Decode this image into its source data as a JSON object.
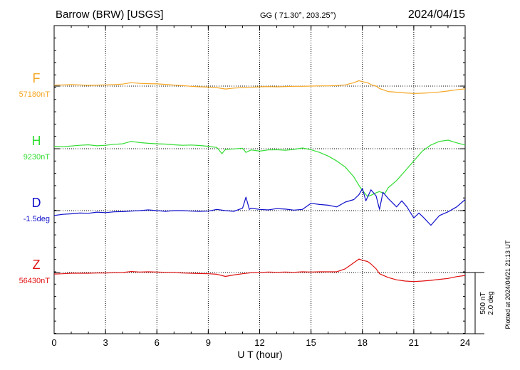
{
  "header": {
    "station": "Barrow (BRW)  [USGS]",
    "coords": "GG ( 71.30°, 203.25°)",
    "date": "2024/04/15"
  },
  "side_note": "Plotted at 2024/04/21 21:13 UT",
  "scale_bar": {
    "label1": "500 nT",
    "label2": "2.0 deg"
  },
  "chart_data": {
    "type": "line",
    "xlabel": "U T (hour)",
    "xlim": [
      0,
      24
    ],
    "xticks": [
      "0",
      "3",
      "6",
      "9",
      "12",
      "15",
      "18",
      "21",
      "24"
    ],
    "scale_bar_nT": 500,
    "grid": true,
    "series": [
      {
        "name": "F",
        "baseline_label": "57180nT",
        "color": "#f5a623",
        "points": [
          [
            0,
            -8
          ],
          [
            0.5,
            -10
          ],
          [
            1,
            -12
          ],
          [
            1.5,
            -10
          ],
          [
            2,
            -6
          ],
          [
            2.5,
            -8
          ],
          [
            3,
            -10
          ],
          [
            3.5,
            -12
          ],
          [
            4,
            -16
          ],
          [
            4.5,
            -28
          ],
          [
            5,
            -22
          ],
          [
            5.5,
            -20
          ],
          [
            6,
            -18
          ],
          [
            6.5,
            -14
          ],
          [
            7,
            -8
          ],
          [
            7.5,
            -4
          ],
          [
            8,
            2
          ],
          [
            8.5,
            6
          ],
          [
            9,
            8
          ],
          [
            9.5,
            12
          ],
          [
            10,
            24
          ],
          [
            10.5,
            16
          ],
          [
            11,
            12
          ],
          [
            11.5,
            10
          ],
          [
            12,
            6
          ],
          [
            12.5,
            4
          ],
          [
            13,
            6
          ],
          [
            13.5,
            4
          ],
          [
            14,
            2
          ],
          [
            14.5,
            2
          ],
          [
            15,
            0
          ],
          [
            15.5,
            -2
          ],
          [
            16,
            -2
          ],
          [
            16.5,
            -4
          ],
          [
            17,
            -10
          ],
          [
            17.5,
            -28
          ],
          [
            17.8,
            -44
          ],
          [
            18,
            -36
          ],
          [
            18.3,
            -28
          ],
          [
            18.5,
            -12
          ],
          [
            18.8,
            0
          ],
          [
            19,
            20
          ],
          [
            19.5,
            44
          ],
          [
            20,
            50
          ],
          [
            20.5,
            56
          ],
          [
            21,
            60
          ],
          [
            21.5,
            58
          ],
          [
            22,
            54
          ],
          [
            22.5,
            48
          ],
          [
            23,
            40
          ],
          [
            23.5,
            30
          ],
          [
            24,
            22
          ]
        ]
      },
      {
        "name": "H",
        "baseline_label": "9230nT",
        "color": "#33dd33",
        "points": [
          [
            0,
            -20
          ],
          [
            0.5,
            -16
          ],
          [
            1,
            -22
          ],
          [
            1.5,
            -28
          ],
          [
            2,
            -32
          ],
          [
            2.5,
            -24
          ],
          [
            3,
            -28
          ],
          [
            3.5,
            -36
          ],
          [
            4,
            -40
          ],
          [
            4.5,
            -60
          ],
          [
            5,
            -50
          ],
          [
            5.5,
            -44
          ],
          [
            6,
            -40
          ],
          [
            6.5,
            -38
          ],
          [
            7,
            -32
          ],
          [
            7.5,
            -28
          ],
          [
            8,
            -30
          ],
          [
            8.5,
            -26
          ],
          [
            9,
            -20
          ],
          [
            9.5,
            -10
          ],
          [
            9.8,
            40
          ],
          [
            10,
            6
          ],
          [
            10.5,
            2
          ],
          [
            11,
            -4
          ],
          [
            11.2,
            30
          ],
          [
            11.5,
            10
          ],
          [
            12,
            20
          ],
          [
            12.5,
            10
          ],
          [
            13,
            8
          ],
          [
            13.5,
            12
          ],
          [
            14,
            6
          ],
          [
            14.5,
            -6
          ],
          [
            15,
            8
          ],
          [
            15.5,
            30
          ],
          [
            16,
            60
          ],
          [
            16.5,
            100
          ],
          [
            17,
            150
          ],
          [
            17.5,
            230
          ],
          [
            17.8,
            300
          ],
          [
            18,
            340
          ],
          [
            18.3,
            390
          ],
          [
            18.5,
            380
          ],
          [
            18.8,
            360
          ],
          [
            19,
            350
          ],
          [
            19.3,
            370
          ],
          [
            19.5,
            320
          ],
          [
            20,
            260
          ],
          [
            20.5,
            180
          ],
          [
            21,
            100
          ],
          [
            21.5,
            20
          ],
          [
            22,
            -30
          ],
          [
            22.5,
            -60
          ],
          [
            23,
            -70
          ],
          [
            23.5,
            -48
          ],
          [
            24,
            -30
          ]
        ]
      },
      {
        "name": "D",
        "baseline_label": "-1.5deg",
        "color": "#1010cc",
        "points": [
          [
            0,
            40
          ],
          [
            0.5,
            30
          ],
          [
            1,
            26
          ],
          [
            1.5,
            20
          ],
          [
            2,
            22
          ],
          [
            2.5,
            12
          ],
          [
            3,
            16
          ],
          [
            3.5,
            10
          ],
          [
            4,
            8
          ],
          [
            4.5,
            4
          ],
          [
            5,
            0
          ],
          [
            5.5,
            -6
          ],
          [
            6,
            0
          ],
          [
            6.5,
            6
          ],
          [
            7,
            0
          ],
          [
            7.5,
            0
          ],
          [
            8,
            4
          ],
          [
            8.5,
            6
          ],
          [
            9,
            4
          ],
          [
            9.5,
            -10
          ],
          [
            10,
            0
          ],
          [
            10.5,
            6
          ],
          [
            11,
            -20
          ],
          [
            11.2,
            -110
          ],
          [
            11.4,
            -10
          ],
          [
            11.5,
            -20
          ],
          [
            12,
            -10
          ],
          [
            12.5,
            -6
          ],
          [
            13,
            -16
          ],
          [
            13.5,
            -12
          ],
          [
            14,
            -4
          ],
          [
            14.5,
            -10
          ],
          [
            15,
            -60
          ],
          [
            15.5,
            -50
          ],
          [
            16,
            -44
          ],
          [
            16.5,
            -30
          ],
          [
            17,
            -70
          ],
          [
            17.5,
            -90
          ],
          [
            17.8,
            -130
          ],
          [
            18,
            -180
          ],
          [
            18.2,
            -80
          ],
          [
            18.5,
            -170
          ],
          [
            18.8,
            -120
          ],
          [
            19,
            -10
          ],
          [
            19.2,
            -150
          ],
          [
            19.5,
            -100
          ],
          [
            20,
            -30
          ],
          [
            20.3,
            -80
          ],
          [
            20.6,
            -30
          ],
          [
            21,
            60
          ],
          [
            21.3,
            20
          ],
          [
            21.6,
            60
          ],
          [
            22,
            120
          ],
          [
            22.5,
            40
          ],
          [
            23,
            10
          ],
          [
            23.5,
            -30
          ],
          [
            24,
            -90
          ]
        ]
      },
      {
        "name": "Z",
        "baseline_label": "56430nT",
        "color": "#e01010",
        "points": [
          [
            0,
            12
          ],
          [
            0.5,
            10
          ],
          [
            1,
            6
          ],
          [
            1.5,
            6
          ],
          [
            2,
            6
          ],
          [
            2.5,
            4
          ],
          [
            3,
            4
          ],
          [
            3.5,
            2
          ],
          [
            4,
            0
          ],
          [
            4.5,
            -8
          ],
          [
            5,
            -4
          ],
          [
            5.5,
            -6
          ],
          [
            6,
            -4
          ],
          [
            6.5,
            -2
          ],
          [
            7,
            -2
          ],
          [
            7.5,
            4
          ],
          [
            8,
            6
          ],
          [
            8.5,
            8
          ],
          [
            9,
            10
          ],
          [
            9.5,
            14
          ],
          [
            10,
            32
          ],
          [
            10.5,
            20
          ],
          [
            11,
            10
          ],
          [
            11.5,
            2
          ],
          [
            12,
            0
          ],
          [
            12.5,
            -4
          ],
          [
            13,
            -2
          ],
          [
            13.5,
            -4
          ],
          [
            14,
            -2
          ],
          [
            14.5,
            -6
          ],
          [
            15,
            -4
          ],
          [
            15.5,
            -6
          ],
          [
            16,
            -6
          ],
          [
            16.5,
            -6
          ],
          [
            17,
            -30
          ],
          [
            17.5,
            -80
          ],
          [
            17.8,
            -110
          ],
          [
            18,
            -100
          ],
          [
            18.3,
            -90
          ],
          [
            18.5,
            -70
          ],
          [
            18.8,
            -30
          ],
          [
            19,
            10
          ],
          [
            19.5,
            40
          ],
          [
            20,
            60
          ],
          [
            20.5,
            70
          ],
          [
            21,
            74
          ],
          [
            21.5,
            70
          ],
          [
            22,
            64
          ],
          [
            22.5,
            56
          ],
          [
            23,
            48
          ],
          [
            23.5,
            34
          ],
          [
            24,
            24
          ]
        ]
      }
    ]
  }
}
